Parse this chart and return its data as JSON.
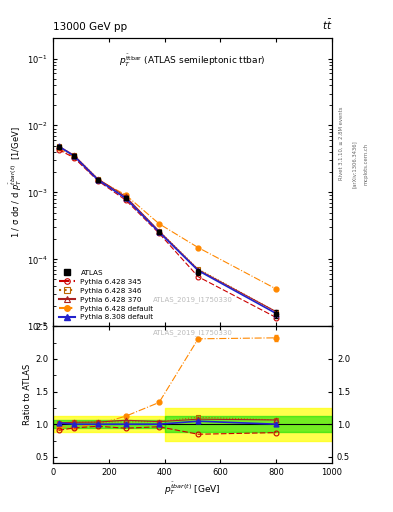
{
  "title_top": "13000 GeV pp",
  "title_right": "tt̅",
  "watermark": "ATLAS_2019_I1750330",
  "rivet_label": "Rivet 3.1.10, ≥ 2.8M events",
  "arxiv_label": "[arXiv:1306.3436]",
  "mcplots_label": "mcplots.cern.ch",
  "xlabel": "$p_T^{\\bar{t}bar(t)}$ [GeV]",
  "ylabel_main": "1 / σ dσ / d $p_T^{\\bar{t}bar(t)}$  [1/GeV]",
  "ylabel_ratio": "Ratio to ATLAS",
  "xlim": [
    0,
    1000
  ],
  "ylim_main": [
    1e-05,
    0.2
  ],
  "ylim_ratio": [
    0.4,
    2.5
  ],
  "x_centers": [
    20,
    75,
    160,
    260,
    380,
    520,
    800
  ],
  "atlas_y": [
    0.0048,
    0.0035,
    0.00155,
    0.00082,
    0.000255,
    6.5e-05,
    1.55e-05
  ],
  "atlas_yerr_lo": [
    0.00025,
    0.0002,
    0.00011,
    5e-05,
    1.8e-05,
    6e-06,
    2e-06
  ],
  "atlas_yerr_hi": [
    0.00025,
    0.0002,
    0.00011,
    5e-05,
    1.8e-05,
    6e-06,
    2e-06
  ],
  "py6_345_y": [
    0.00435,
    0.0033,
    0.0015,
    0.00077,
    0.000245,
    5.5e-05,
    1.35e-05
  ],
  "py6_346_y": [
    0.0049,
    0.0036,
    0.0016,
    0.00085,
    0.000265,
    7.2e-05,
    1.65e-05
  ],
  "py6_370_y": [
    0.0049,
    0.0036,
    0.0016,
    0.00087,
    0.000265,
    7e-05,
    1.65e-05
  ],
  "py6_default_y": [
    0.0046,
    0.00335,
    0.00155,
    0.00092,
    0.00034,
    0.00015,
    3.6e-05
  ],
  "py8_default_y": [
    0.0049,
    0.0035,
    0.00155,
    0.00082,
    0.000255,
    6.8e-05,
    1.55e-05
  ],
  "ratio_py6_345": [
    0.906,
    0.943,
    0.968,
    0.939,
    0.961,
    0.846,
    0.871
  ],
  "ratio_py6_346": [
    1.021,
    1.029,
    1.032,
    1.037,
    1.039,
    1.108,
    1.065
  ],
  "ratio_py6_370": [
    1.021,
    1.029,
    1.032,
    1.061,
    1.039,
    1.077,
    1.065
  ],
  "ratio_py6_default": [
    0.958,
    0.957,
    1.0,
    1.122,
    1.333,
    2.308,
    2.323
  ],
  "ratio_py8_default": [
    1.021,
    1.0,
    1.0,
    1.0,
    1.0,
    1.046,
    1.0
  ],
  "color_atlas": "#000000",
  "color_py6_345": "#cc0000",
  "color_py6_346": "#bb6600",
  "color_py6_370": "#aa2222",
  "color_py6_default": "#ff8800",
  "color_py8_default": "#2222cc",
  "bg_color": "#ffffff"
}
